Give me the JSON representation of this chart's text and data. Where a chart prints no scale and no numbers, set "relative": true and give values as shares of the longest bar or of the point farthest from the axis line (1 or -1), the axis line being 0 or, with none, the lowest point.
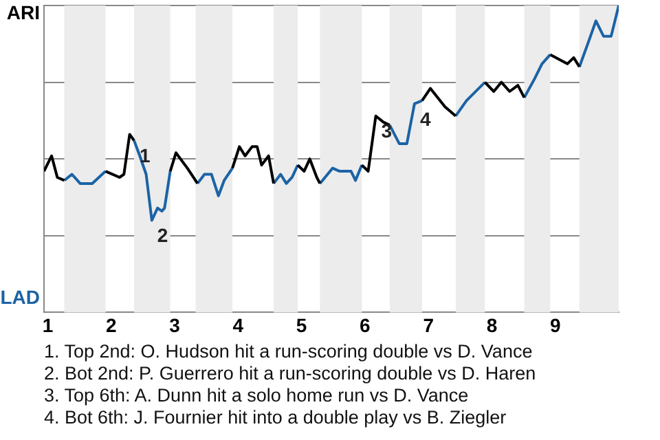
{
  "chart_data": {
    "type": "line",
    "relative": true,
    "x": [
      0.94,
      1.06,
      1.15,
      1.26,
      1.38,
      1.51,
      1.7,
      1.91,
      2.13,
      2.2,
      2.29,
      2.36,
      2.45,
      2.55,
      2.64,
      2.73,
      2.8,
      2.84,
      2.93,
      3.02,
      3.2,
      3.36,
      3.47,
      3.58,
      3.69,
      3.78,
      3.91,
      4.02,
      4.11,
      4.22,
      4.3,
      4.37,
      4.48,
      4.56,
      4.67,
      4.76,
      4.85,
      4.94,
      5.04,
      5.13,
      5.24,
      5.29,
      5.49,
      5.6,
      5.78,
      5.85,
      5.95,
      6.05,
      6.17,
      6.29,
      6.39,
      6.54,
      6.66,
      6.78,
      6.9,
      7.03,
      7.26,
      7.43,
      7.6,
      7.89,
      8.03,
      8.15,
      8.28,
      8.41,
      8.51,
      8.67,
      8.79,
      8.92,
      9.19,
      9.29,
      9.38,
      9.52,
      9.64,
      9.76,
      9.88,
      10
    ],
    "series": [
      {
        "color": "#000000",
        "values": [
          0.46,
          0.51,
          0.44,
          0.43,
          null,
          null,
          null,
          0.46,
          0.44,
          0.45,
          0.58,
          0.56,
          null,
          null,
          null,
          null,
          null,
          null,
          0.46,
          0.52,
          0.47,
          0.42,
          null,
          null,
          null,
          null,
          0.47,
          0.54,
          0.51,
          0.54,
          0.54,
          0.48,
          0.51,
          0.42,
          null,
          null,
          null,
          0.48,
          0.46,
          0.5,
          0.44,
          0.42,
          null,
          null,
          null,
          null,
          0.48,
          0.46,
          0.64,
          0.62,
          0.61,
          null,
          null,
          null,
          0.69,
          0.73,
          0.67,
          0.64,
          null,
          0.75,
          0.72,
          0.75,
          0.72,
          0.74,
          0.7,
          null,
          null,
          0.84,
          0.81,
          0.83,
          0.8,
          null,
          null,
          null,
          null,
          null
        ]
      },
      {
        "color": "#1b63a5",
        "values": [
          null,
          null,
          null,
          0.43,
          0.45,
          0.42,
          0.42,
          0.46,
          null,
          null,
          null,
          0.56,
          0.51,
          0.45,
          0.3,
          0.34,
          0.33,
          0.34,
          0.46,
          null,
          null,
          0.42,
          0.45,
          0.45,
          0.38,
          0.43,
          0.47,
          null,
          null,
          null,
          null,
          null,
          null,
          0.42,
          0.45,
          0.42,
          0.44,
          0.48,
          null,
          null,
          null,
          0.42,
          0.47,
          0.46,
          0.46,
          0.43,
          0.48,
          null,
          null,
          null,
          0.61,
          0.55,
          0.55,
          0.68,
          0.69,
          null,
          null,
          0.64,
          0.69,
          0.75,
          null,
          null,
          null,
          null,
          0.7,
          0.76,
          0.81,
          0.84,
          null,
          null,
          0.8,
          0.88,
          0.95,
          0.9,
          0.9,
          1
        ]
      }
    ],
    "xlim": [
      0.94,
      10
    ],
    "xticks": [
      1,
      2,
      3,
      4,
      5,
      6,
      7,
      8,
      9
    ],
    "grid": "y",
    "legend": false,
    "marker": "none",
    "line_style": "solid",
    "bands": [
      {
        "axis": "x",
        "from": 1.26,
        "to": 1.91,
        "color": "#ececec"
      },
      {
        "axis": "x",
        "from": 2.36,
        "to": 2.93,
        "color": "#ececec"
      },
      {
        "axis": "x",
        "from": 3.33,
        "to": 3.91,
        "color": "#ececec"
      },
      {
        "axis": "x",
        "from": 4.56,
        "to": 4.94,
        "color": "#ececec"
      },
      {
        "axis": "x",
        "from": 5.29,
        "to": 5.95,
        "color": "#ececec"
      },
      {
        "axis": "x",
        "from": 6.39,
        "to": 6.9,
        "color": "#ececec"
      },
      {
        "axis": "x",
        "from": 7.43,
        "to": 7.89,
        "color": "#ececec"
      },
      {
        "axis": "x",
        "from": 8.51,
        "to": 8.92,
        "color": "#ececec"
      },
      {
        "axis": "x",
        "from": 9.38,
        "to": 10,
        "color": "#ececec"
      }
    ],
    "annotations": [
      "ARI",
      "LAD",
      {
        "text": "1",
        "x": 2.36,
        "y": 0.56
      },
      {
        "text": "2",
        "x": 2.64,
        "y": 0.3
      },
      {
        "text": "3",
        "x": 6.17,
        "y": 0.64
      },
      {
        "text": "4",
        "x": 6.78,
        "y": 0.68
      },
      "1. Top 2nd: O. Hudson hit a run-scoring double vs D. Vance",
      "2. Bot 2nd: P. Guerrero hit a run-scoring double vs D. Haren",
      "3. Top 6th: A. Dunn hit a solo home run vs D. Vance",
      "4. Bot 6th: J. Fournier hit into a double play vs B. Ziegler"
    ]
  }
}
